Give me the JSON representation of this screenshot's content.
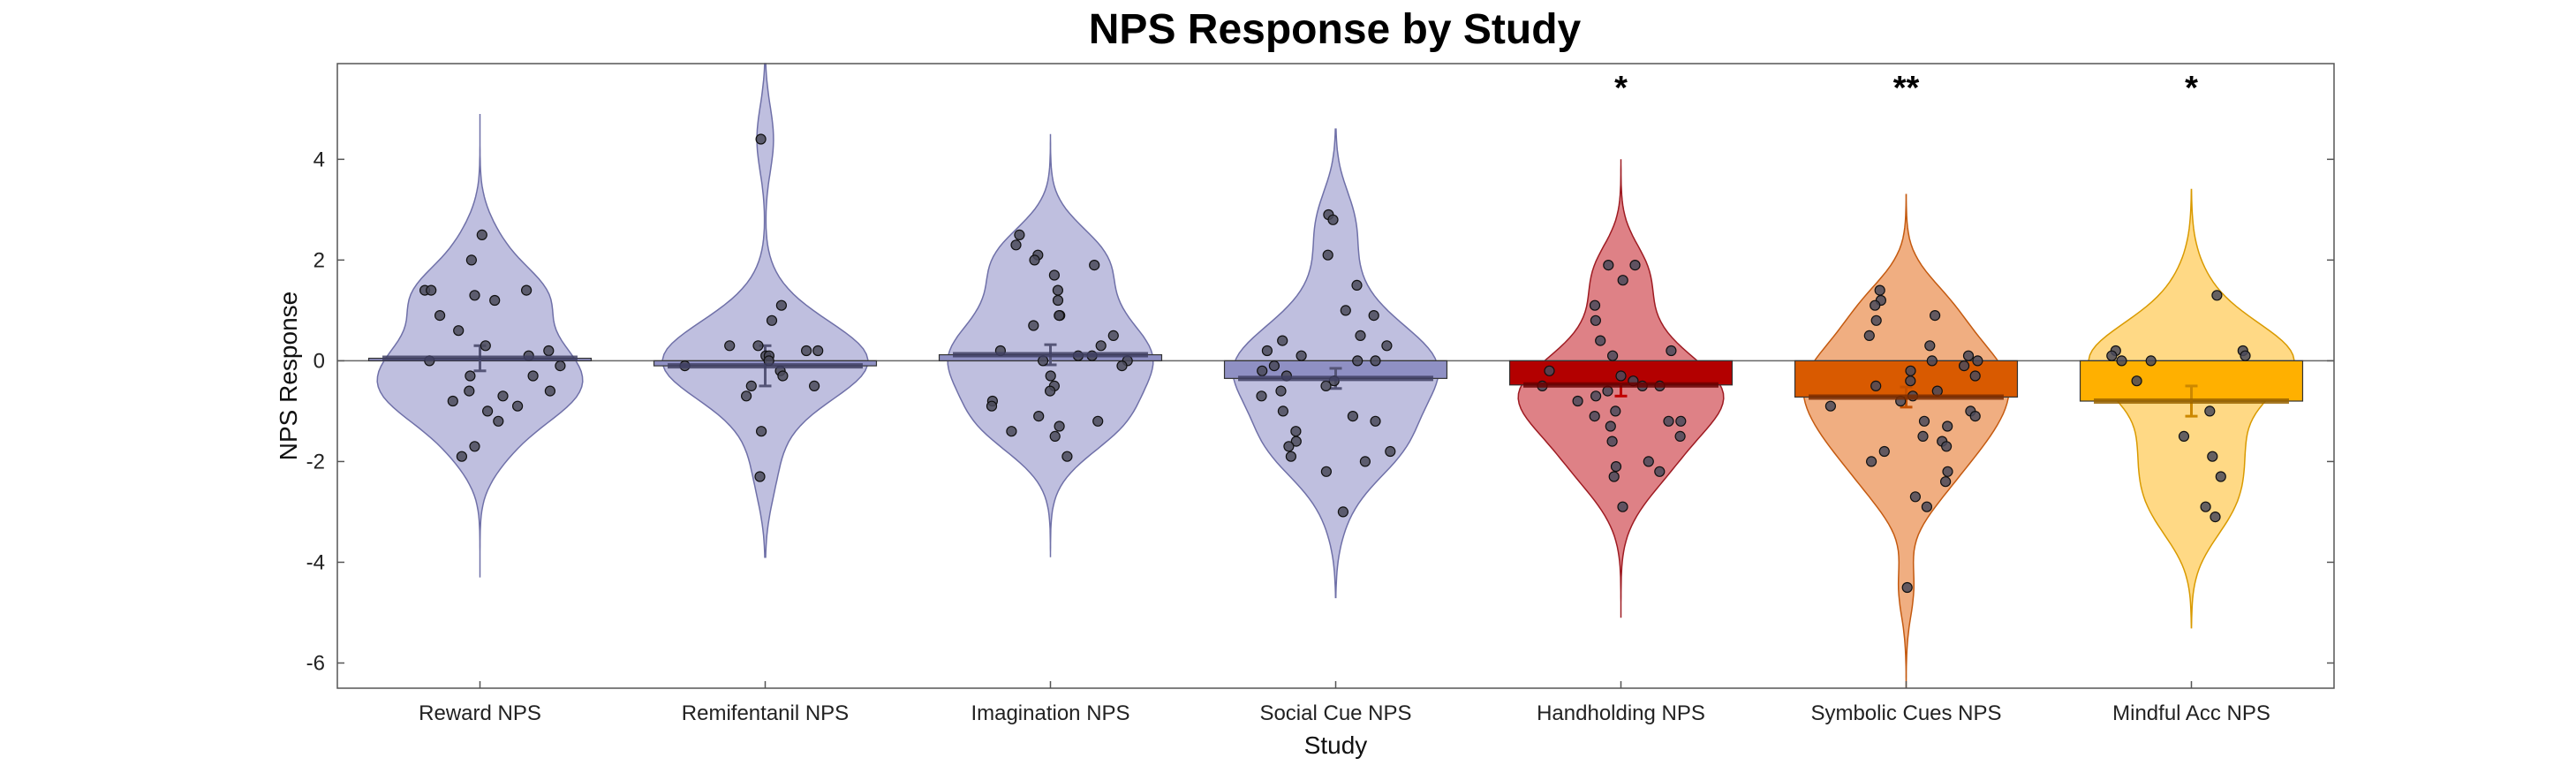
{
  "chart_data": {
    "type": "bar",
    "title": "NPS Response by Study",
    "xlabel": "Study",
    "ylabel": "NPS Response",
    "ylim": [
      -6.5,
      5.9
    ],
    "yticks": [
      -6,
      -4,
      -2,
      0,
      2,
      4
    ],
    "grid": false,
    "legend": "none",
    "categories": [
      "Reward NPS",
      "Remifentanil NPS",
      "Imagination NPS",
      "Social Cue NPS",
      "Handholding NPS",
      "Symbolic Cues NPS",
      "Mindful Acc NPS"
    ],
    "values": [
      0.05,
      -0.1,
      0.12,
      -0.35,
      -0.48,
      -0.72,
      -0.8
    ],
    "error": [
      0.25,
      0.4,
      0.2,
      0.2,
      0.22,
      0.2,
      0.3
    ],
    "significance": [
      "",
      "",
      "",
      "",
      "*",
      "**",
      "*"
    ],
    "colors": {
      "bar": [
        "#8f90c4",
        "#8f90c4",
        "#8f90c4",
        "#8f90c4",
        "#b30000",
        "#d95a00",
        "#ffb000"
      ],
      "violin": [
        "#bcbcdd",
        "#bcbcdd",
        "#bcbcdd",
        "#bcbcdd",
        "#dc7a7f",
        "#efaa7a",
        "#ffd77e"
      ],
      "violin_edge": [
        "#6f70a8",
        "#6f70a8",
        "#6f70a8",
        "#6f70a8",
        "#9e1b22",
        "#c45a10",
        "#d99a00"
      ],
      "mean_line": [
        "#3f3f63",
        "#3f3f63",
        "#3f3f63",
        "#3f3f63",
        "#6a0000",
        "#7a2c00",
        "#9a6400"
      ],
      "errorbar": [
        "#555577",
        "#555577",
        "#555577",
        "#555577",
        "#c00000",
        "#c45000",
        "#cc8800"
      ]
    },
    "violin_range": [
      [
        -4.3,
        4.9
      ],
      [
        -3.9,
        5.9
      ],
      [
        -3.9,
        4.5
      ],
      [
        -4.7,
        4.6
      ],
      [
        -5.1,
        4.0
      ],
      [
        -6.5,
        3.3
      ],
      [
        -5.3,
        3.4
      ]
    ],
    "points": [
      [
        1.4,
        1.4,
        1.4,
        2.5,
        2.0,
        1.3,
        1.2,
        0.9,
        0.6,
        0.3,
        0.2,
        0.1,
        0.0,
        -0.1,
        -0.3,
        -0.3,
        -0.6,
        -0.6,
        -0.7,
        -0.8,
        -0.9,
        -1.0,
        -1.2,
        -1.7,
        -1.9
      ],
      [
        4.4,
        1.1,
        0.8,
        0.3,
        0.3,
        0.2,
        0.2,
        0.1,
        0.1,
        0.0,
        -0.1,
        -0.2,
        -0.3,
        -0.5,
        -0.5,
        -0.7,
        -1.4,
        -2.3
      ],
      [
        2.5,
        2.3,
        2.1,
        2.0,
        1.9,
        1.7,
        1.4,
        1.2,
        0.9,
        0.9,
        0.7,
        0.5,
        0.3,
        0.2,
        0.1,
        0.1,
        0.0,
        0.0,
        -0.1,
        -0.3,
        -0.5,
        -0.6,
        -0.8,
        -0.9,
        -1.1,
        -1.2,
        -1.3,
        -1.4,
        -1.5,
        -1.9
      ],
      [
        2.9,
        2.8,
        2.1,
        1.5,
        1.0,
        0.9,
        0.5,
        0.4,
        0.3,
        0.2,
        0.1,
        0.0,
        0.0,
        -0.1,
        -0.2,
        -0.3,
        -0.4,
        -0.5,
        -0.6,
        -0.7,
        -1.0,
        -1.1,
        -1.2,
        -1.4,
        -1.6,
        -1.7,
        -1.8,
        -1.9,
        -2.0,
        -2.2,
        -3.0
      ],
      [
        1.9,
        1.9,
        1.6,
        1.1,
        0.8,
        0.4,
        0.2,
        0.1,
        -0.2,
        -0.3,
        -0.4,
        -0.5,
        -0.5,
        -0.5,
        -0.6,
        -0.7,
        -0.8,
        -1.0,
        -1.1,
        -1.2,
        -1.2,
        -1.3,
        -1.5,
        -1.6,
        -2.0,
        -2.1,
        -2.2,
        -2.3,
        -2.9
      ],
      [
        1.4,
        1.2,
        1.1,
        0.9,
        0.8,
        0.5,
        0.3,
        0.1,
        0.0,
        0.0,
        -0.1,
        -0.2,
        -0.3,
        -0.4,
        -0.5,
        -0.6,
        -0.7,
        -0.8,
        -0.9,
        -1.0,
        -1.1,
        -1.2,
        -1.3,
        -1.5,
        -1.6,
        -1.7,
        -1.8,
        -2.0,
        -2.2,
        -2.4,
        -2.7,
        -2.9,
        -4.5
      ],
      [
        1.3,
        0.2,
        0.2,
        0.1,
        0.1,
        0.0,
        0.0,
        -0.4,
        -1.0,
        -1.5,
        -1.9,
        -2.3,
        -2.9,
        -3.1
      ]
    ]
  }
}
